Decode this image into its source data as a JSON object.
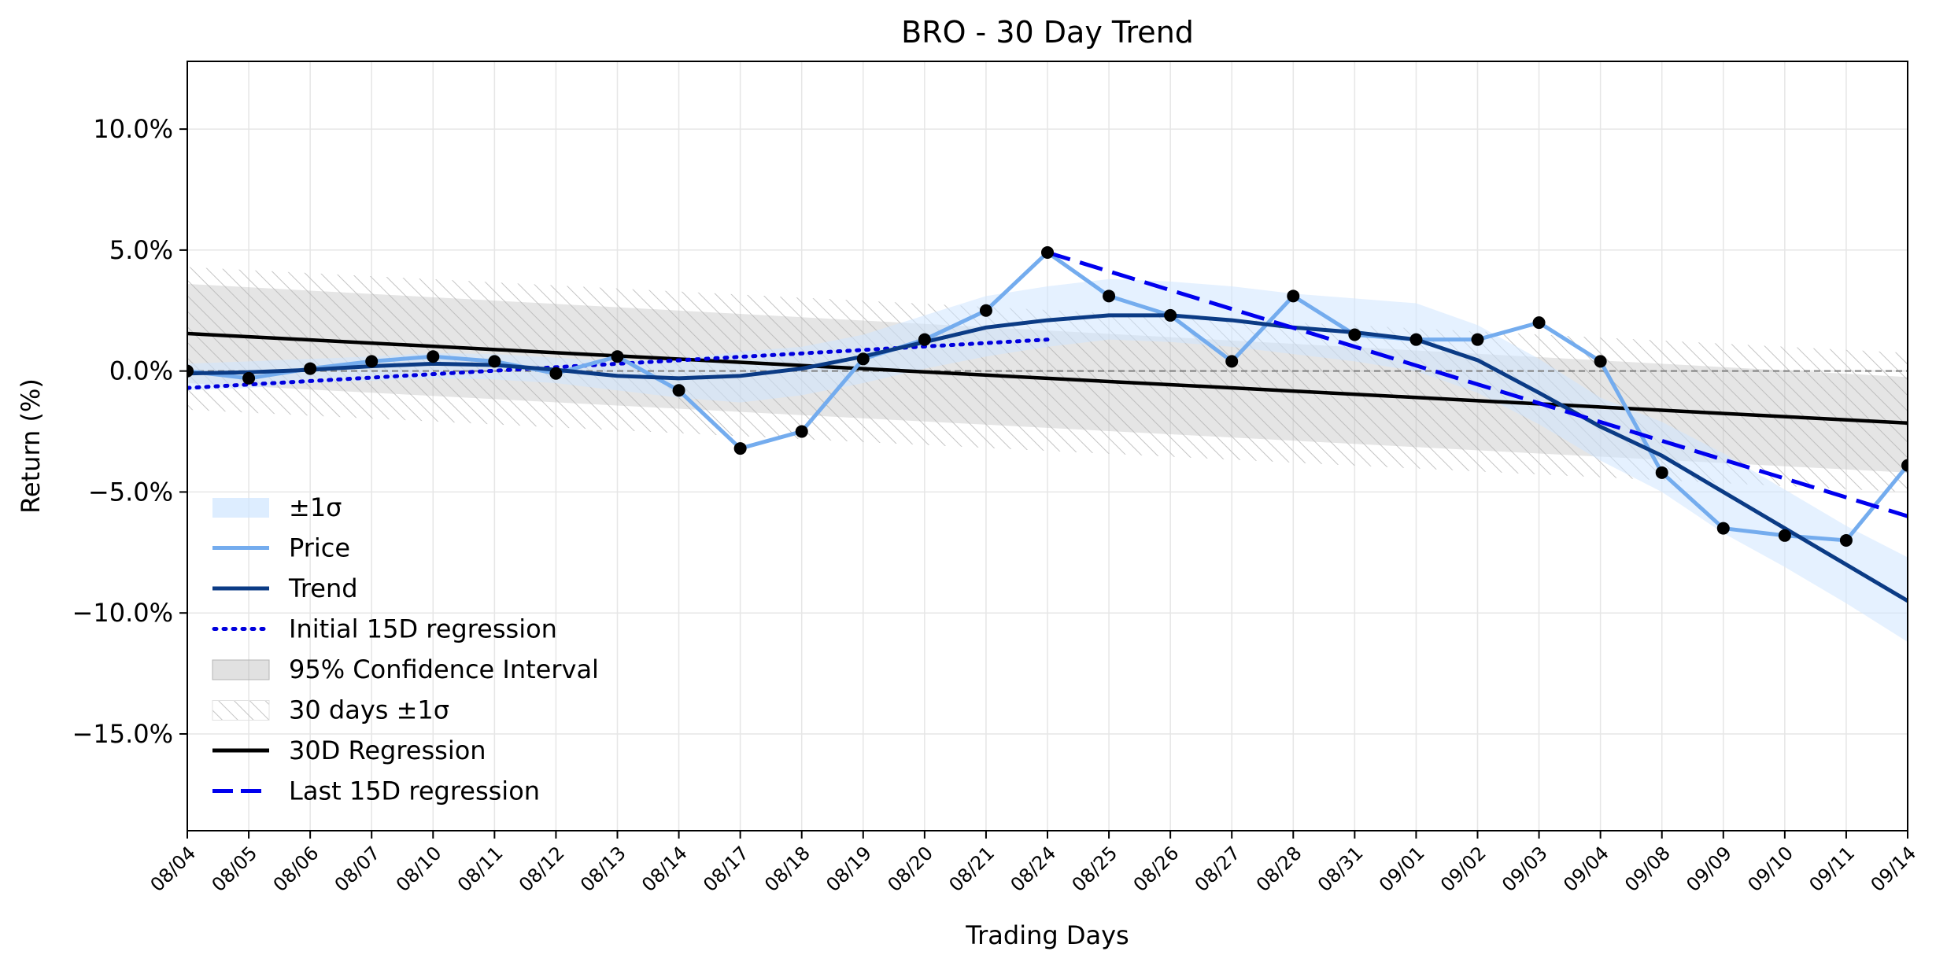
{
  "chart_data": {
    "type": "line",
    "title": "BRO - 30 Day Trend",
    "xlabel": "Trading Days",
    "ylabel": "Return (%)",
    "categories": [
      "08/04",
      "08/05",
      "08/06",
      "08/07",
      "08/10",
      "08/11",
      "08/12",
      "08/13",
      "08/14",
      "08/17",
      "08/18",
      "08/19",
      "08/20",
      "08/21",
      "08/24",
      "08/25",
      "08/26",
      "08/27",
      "08/28",
      "08/31",
      "09/01",
      "09/02",
      "09/03",
      "09/04",
      "09/08",
      "09/09",
      "09/10",
      "09/11",
      "09/14"
    ],
    "ylim": [
      -19,
      12.8
    ],
    "yticks": [
      10,
      5,
      0,
      -5,
      -10,
      -15
    ],
    "ytick_labels": [
      "10.0%",
      "5.0%",
      "0.0%",
      "−5.0%",
      "−10.0%",
      "−15.0%"
    ],
    "grid": true,
    "legend_position": "lower-left",
    "legend": [
      "±1σ",
      "Price",
      "Trend",
      "Initial 15D regression",
      "95% Confidence Interval",
      "30 days ±1σ",
      "30D Regression",
      "Last 15D regression"
    ],
    "series": [
      {
        "name": "Price",
        "color": "#74acee",
        "values": [
          0.0,
          -0.3,
          0.1,
          0.4,
          0.6,
          0.4,
          -0.1,
          0.6,
          -0.8,
          -3.2,
          -2.5,
          0.5,
          1.3,
          2.5,
          4.9,
          3.1,
          2.3,
          0.4,
          3.1,
          1.5,
          1.3,
          1.3,
          2.0,
          0.4,
          -4.2,
          -6.5,
          -6.8,
          -7.0,
          -3.9
        ]
      },
      {
        "name": "Trend",
        "color": "#0b3b85",
        "values": [
          -0.1,
          -0.05,
          0.05,
          0.2,
          0.3,
          0.25,
          0.05,
          -0.2,
          -0.3,
          -0.2,
          0.1,
          0.6,
          1.2,
          1.8,
          2.1,
          2.3,
          2.3,
          2.1,
          1.8,
          1.6,
          1.3,
          0.45,
          -0.9,
          -2.3,
          -3.5,
          -5.0,
          -6.5,
          -8.0,
          -9.5
        ]
      },
      {
        "name": "±1σ",
        "color": "#dceeff",
        "lower": [
          -0.8,
          -0.7,
          -0.5,
          -0.4,
          -0.3,
          -0.35,
          -0.5,
          -0.8,
          -1.1,
          -1.3,
          -1.0,
          -0.5,
          0.1,
          0.6,
          1.0,
          1.3,
          1.2,
          1.0,
          0.7,
          0.4,
          0.0,
          -0.9,
          -2.2,
          -3.7,
          -5.0,
          -6.7,
          -8.1,
          -9.6,
          -11.2
        ],
        "upper": [
          0.3,
          0.4,
          0.5,
          0.6,
          0.75,
          0.7,
          0.55,
          0.4,
          0.5,
          0.8,
          1.0,
          1.5,
          2.3,
          3.1,
          3.5,
          3.8,
          3.7,
          3.5,
          3.2,
          3.0,
          2.8,
          1.9,
          0.5,
          -1.1,
          -2.1,
          -3.4,
          -4.9,
          -6.4,
          -7.7
        ]
      },
      {
        "name": "Initial 15D regression",
        "color": "#0000dd",
        "x_start": 0,
        "x_end": 14,
        "y_start": -0.7,
        "y_end": 1.3
      },
      {
        "name": "Last 15D regression",
        "color": "#0000ee",
        "x_start": 14,
        "x_end": 28,
        "y_start": 4.9,
        "y_end": -6.0
      },
      {
        "name": "30D Regression",
        "color": "#000000",
        "x_start": 0,
        "x_end": 28,
        "y_start": 1.55,
        "y_end": -2.15
      },
      {
        "name": "95% Confidence Interval",
        "color": "#c8c8c8",
        "upper_start": 3.6,
        "upper_end": -0.25,
        "lower_start": -0.5,
        "lower_end": -4.2
      },
      {
        "name": "30 days ±1σ",
        "color": "#cfcfcf",
        "upper_start": 4.3,
        "upper_end": 0.75,
        "lower_start": -1.6,
        "lower_end": -5.0
      }
    ],
    "zero_line": 0
  }
}
